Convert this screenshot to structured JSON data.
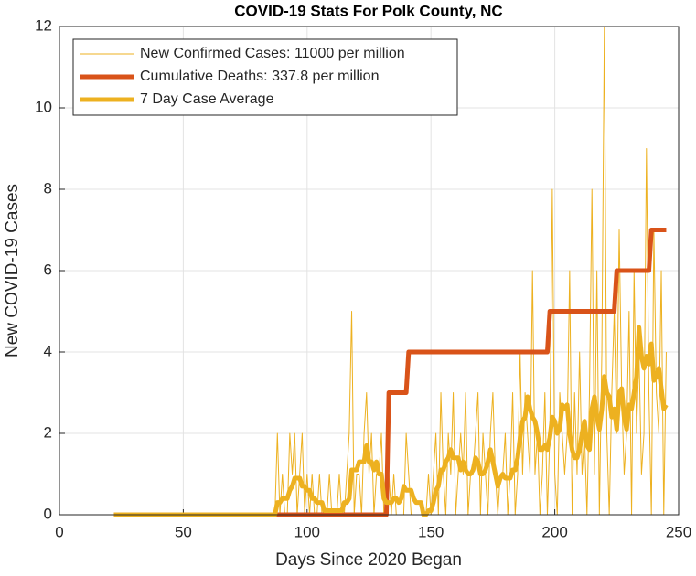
{
  "chart_data": {
    "type": "line",
    "title": "COVID-19 Stats For Polk County, NC",
    "x_label": "Days Since 2020 Began",
    "y_label": "New COVID-19 Cases",
    "x": [
      22,
      23,
      24,
      25,
      26,
      27,
      28,
      29,
      30,
      31,
      32,
      33,
      34,
      35,
      36,
      37,
      38,
      39,
      40,
      41,
      42,
      43,
      44,
      45,
      46,
      47,
      48,
      49,
      50,
      51,
      52,
      53,
      54,
      55,
      56,
      57,
      58,
      59,
      60,
      61,
      62,
      63,
      64,
      65,
      66,
      67,
      68,
      69,
      70,
      71,
      72,
      73,
      74,
      75,
      76,
      77,
      78,
      79,
      80,
      81,
      82,
      83,
      84,
      85,
      86,
      87,
      88,
      89,
      90,
      91,
      92,
      93,
      94,
      95,
      96,
      97,
      98,
      99,
      100,
      101,
      102,
      103,
      104,
      105,
      106,
      107,
      108,
      109,
      110,
      111,
      112,
      113,
      114,
      115,
      116,
      117,
      118,
      119,
      120,
      121,
      122,
      123,
      124,
      125,
      126,
      127,
      128,
      129,
      130,
      131,
      132,
      133,
      134,
      135,
      136,
      137,
      138,
      139,
      140,
      141,
      142,
      143,
      144,
      145,
      146,
      147,
      148,
      149,
      150,
      151,
      152,
      153,
      154,
      155,
      156,
      157,
      158,
      159,
      160,
      161,
      162,
      163,
      164,
      165,
      166,
      167,
      168,
      169,
      170,
      171,
      172,
      173,
      174,
      175,
      176,
      177,
      178,
      179,
      180,
      181,
      182,
      183,
      184,
      185,
      186,
      187,
      188,
      189,
      190,
      191,
      192,
      193,
      194,
      195,
      196,
      197,
      198,
      199,
      200,
      201,
      202,
      203,
      204,
      205,
      206,
      207,
      208,
      209,
      210,
      211,
      212,
      213,
      214,
      215,
      216,
      217,
      218,
      219,
      220,
      221,
      222,
      223,
      224,
      225,
      226,
      227,
      228,
      229,
      230,
      231,
      232,
      233,
      234,
      235,
      236,
      237,
      238,
      239,
      240,
      241,
      242,
      243,
      244,
      245
    ],
    "series": [
      {
        "name": "New Confirmed Cases: 11000 per million",
        "color": "#EDB120",
        "width": 1,
        "values": [
          0,
          0,
          0,
          0,
          0,
          0,
          0,
          0,
          0,
          0,
          0,
          0,
          0,
          0,
          0,
          0,
          0,
          0,
          0,
          0,
          0,
          0,
          0,
          0,
          0,
          0,
          0,
          0,
          0,
          0,
          0,
          0,
          0,
          0,
          0,
          0,
          0,
          0,
          0,
          0,
          0,
          0,
          0,
          0,
          0,
          0,
          0,
          0,
          0,
          0,
          0,
          0,
          0,
          0,
          0,
          0,
          0,
          0,
          0,
          0,
          0,
          0,
          0,
          0,
          0,
          0,
          2,
          0,
          1,
          0,
          0,
          2,
          1,
          2,
          0,
          1,
          2,
          0,
          1,
          0,
          1,
          0,
          0,
          1,
          0,
          0,
          0,
          1,
          0,
          0,
          0,
          1,
          0,
          0,
          1,
          2,
          5,
          0,
          1,
          1,
          0,
          2,
          3,
          1,
          2,
          0,
          1,
          1,
          2,
          0,
          0,
          1,
          0,
          1,
          0,
          0,
          0,
          0,
          2,
          1,
          0,
          0,
          0,
          0,
          0,
          0,
          0,
          1,
          0,
          1,
          2,
          0,
          3,
          1,
          0,
          2,
          1,
          3,
          0,
          1,
          2,
          1,
          3,
          0,
          1,
          1,
          2,
          3,
          0,
          2,
          1,
          0,
          2,
          3,
          1,
          0,
          1,
          1,
          2,
          0,
          1,
          3,
          0,
          1,
          4,
          1,
          3,
          2,
          1,
          6,
          1,
          2,
          0,
          1,
          3,
          0,
          2,
          8,
          1,
          0,
          3,
          2,
          1,
          2,
          6,
          0,
          3,
          1,
          4,
          1,
          2,
          0,
          3,
          8,
          1,
          6,
          0,
          4,
          12,
          2,
          0,
          3,
          5,
          2,
          7,
          3,
          1,
          2,
          5,
          0,
          6,
          2,
          4,
          1,
          2,
          9,
          3,
          0,
          7,
          3,
          2,
          6,
          0,
          4
        ]
      },
      {
        "name": "Cumulative Deaths: 337.8 per million",
        "color": "#D95319",
        "width": 5,
        "values": [
          0,
          0,
          0,
          0,
          0,
          0,
          0,
          0,
          0,
          0,
          0,
          0,
          0,
          0,
          0,
          0,
          0,
          0,
          0,
          0,
          0,
          0,
          0,
          0,
          0,
          0,
          0,
          0,
          0,
          0,
          0,
          0,
          0,
          0,
          0,
          0,
          0,
          0,
          0,
          0,
          0,
          0,
          0,
          0,
          0,
          0,
          0,
          0,
          0,
          0,
          0,
          0,
          0,
          0,
          0,
          0,
          0,
          0,
          0,
          0,
          0,
          0,
          0,
          0,
          0,
          0,
          0,
          0,
          0,
          0,
          0,
          0,
          0,
          0,
          0,
          0,
          0,
          0,
          0,
          0,
          0,
          0,
          0,
          0,
          0,
          0,
          0,
          0,
          0,
          0,
          0,
          0,
          0,
          0,
          0,
          0,
          0,
          0,
          0,
          0,
          0,
          0,
          0,
          0,
          0,
          0,
          0,
          0,
          0,
          0,
          0,
          3,
          3,
          3,
          3,
          3,
          3,
          3,
          3,
          4,
          4,
          4,
          4,
          4,
          4,
          4,
          4,
          4,
          4,
          4,
          4,
          4,
          4,
          4,
          4,
          4,
          4,
          4,
          4,
          4,
          4,
          4,
          4,
          4,
          4,
          4,
          4,
          4,
          4,
          4,
          4,
          4,
          4,
          4,
          4,
          4,
          4,
          4,
          4,
          4,
          4,
          4,
          4,
          4,
          4,
          4,
          4,
          4,
          4,
          4,
          4,
          4,
          4,
          4,
          4,
          4,
          5,
          5,
          5,
          5,
          5,
          5,
          5,
          5,
          5,
          5,
          5,
          5,
          5,
          5,
          5,
          5,
          5,
          5,
          5,
          5,
          5,
          5,
          5,
          5,
          5,
          5,
          5,
          6,
          6,
          6,
          6,
          6,
          6,
          6,
          6,
          6,
          6,
          6,
          6,
          6,
          6,
          7,
          7,
          7,
          7,
          7,
          7,
          7
        ]
      },
      {
        "name": "7 Day Case Average",
        "color": "#EDB120",
        "width": 5,
        "values": [
          0,
          0,
          0,
          0,
          0,
          0,
          0,
          0,
          0,
          0,
          0,
          0,
          0,
          0,
          0,
          0,
          0,
          0,
          0,
          0,
          0,
          0,
          0,
          0,
          0,
          0,
          0,
          0,
          0,
          0,
          0,
          0,
          0,
          0,
          0,
          0,
          0,
          0,
          0,
          0,
          0,
          0,
          0,
          0,
          0,
          0,
          0,
          0,
          0,
          0,
          0,
          0,
          0,
          0,
          0,
          0,
          0,
          0,
          0,
          0,
          0,
          0,
          0,
          0,
          0,
          0,
          0.3,
          0.3,
          0.4,
          0.4,
          0.4,
          0.6,
          0.7,
          0.9,
          0.9,
          0.9,
          0.7,
          0.7,
          0.6,
          0.6,
          0.4,
          0.4,
          0.3,
          0.3,
          0.3,
          0.1,
          0.1,
          0.1,
          0.1,
          0.1,
          0.1,
          0.1,
          0.1,
          0.3,
          0.3,
          0.4,
          1.1,
          1.1,
          1.1,
          1.3,
          1.3,
          1.3,
          1.7,
          1.3,
          1.3,
          1.1,
          1.3,
          1,
          1,
          0.4,
          0.3,
          0.3,
          0.3,
          0.4,
          0.4,
          0.3,
          0.4,
          0.7,
          0.6,
          0.6,
          0.6,
          0.4,
          0.3,
          0.3,
          0.3,
          0,
          0,
          0.1,
          0.1,
          0.3,
          0.6,
          0.7,
          1.1,
          1.1,
          1.3,
          1.4,
          1.6,
          1.4,
          1.4,
          1.4,
          1.1,
          1.3,
          1.1,
          1,
          1,
          1.1,
          1.4,
          1.3,
          1,
          1,
          1.1,
          1.3,
          1.6,
          1.3,
          1,
          0.7,
          0.9,
          1,
          0.9,
          0.9,
          0.9,
          1.1,
          1.1,
          1.4,
          1.9,
          2.3,
          2.4,
          2.9,
          2.6,
          2.4,
          2.3,
          2,
          1.6,
          1.6,
          1.7,
          1.6,
          1.9,
          2.4,
          2.3,
          2,
          2.1,
          2.7,
          2.6,
          2.7,
          2,
          1.6,
          1.4,
          1.4,
          1.6,
          2,
          2.3,
          1.7,
          1.6,
          2.6,
          2.9,
          2.4,
          2.1,
          2.6,
          3.4,
          3,
          2.9,
          2.4,
          2.6,
          2.1,
          3,
          3.1,
          2.4,
          2.1,
          2.7,
          2.6,
          3,
          3.4,
          4.6,
          3.9,
          3.6,
          3.9,
          3.7,
          4.2,
          3.3,
          3.4,
          3.6,
          3.1,
          2.6,
          2.7
        ]
      }
    ],
    "xlim": [
      0,
      250
    ],
    "xticks": [
      0,
      50,
      100,
      150,
      200,
      250
    ],
    "ylim": [
      0,
      12
    ],
    "yticks": [
      0,
      2,
      4,
      6,
      8,
      10,
      12
    ],
    "grid": true,
    "legend_position": "upper-left"
  }
}
